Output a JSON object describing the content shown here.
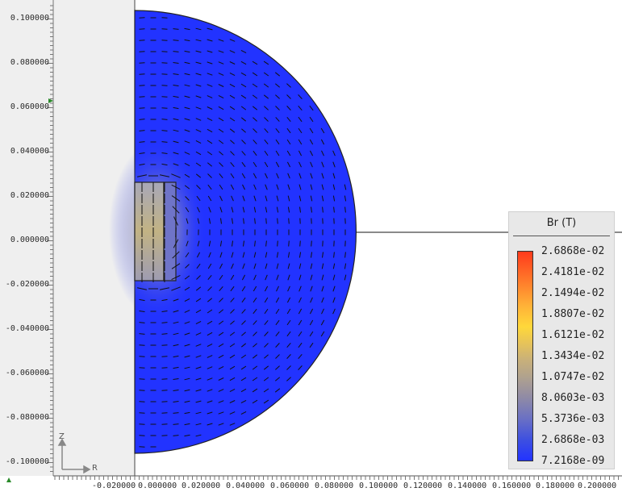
{
  "legend": {
    "title": "Br (T)",
    "ticks": [
      "2.6868e-02",
      "2.4181e-02",
      "2.1494e-02",
      "1.8807e-02",
      "1.6121e-02",
      "1.3434e-02",
      "1.0747e-02",
      "8.0603e-03",
      "5.3736e-03",
      "2.6868e-03",
      "7.2168e-09"
    ],
    "colors": [
      "#ff3a1c",
      "#ff7a2a",
      "#ffb238",
      "#ffd83a",
      "#e6c35a",
      "#c8b07a",
      "#b0a28e",
      "#8f8aa6",
      "#6a70c4",
      "#3e50e0",
      "#2233ff"
    ]
  },
  "axes": {
    "y_ticks": [
      "0.100000",
      "0.080000",
      "0.060000",
      "0.040000",
      "0.020000",
      "0.000000",
      "-0.020000",
      "-0.040000",
      "-0.060000",
      "-0.080000",
      "-0.100000"
    ],
    "x_ticks": [
      "-0.020000",
      "0.000000",
      "0.020000",
      "0.040000",
      "0.060000",
      "0.080000",
      "0.100000",
      "0.120000",
      "0.140000",
      "0.160000",
      "0.180000",
      "0.200000"
    ],
    "orient_z": "Z",
    "orient_r": "R"
  },
  "colors": {
    "domain": "#2233ff",
    "background": "#ffffff",
    "left_strip": "#efefef"
  }
}
